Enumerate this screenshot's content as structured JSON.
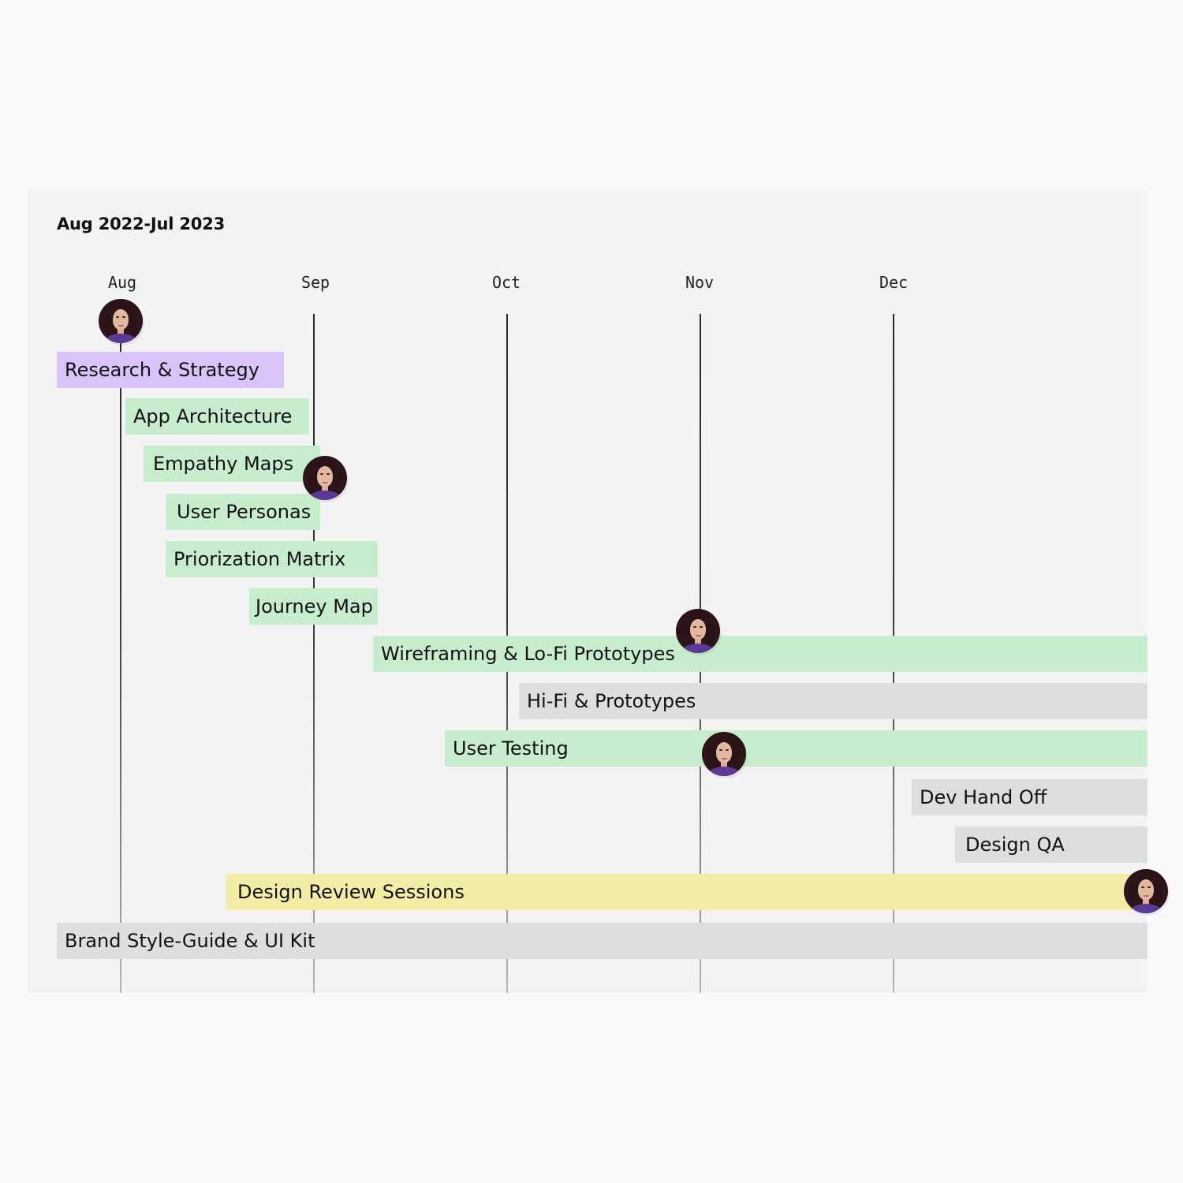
{
  "header": {
    "date_range": "Aug 2022-Jul 2023"
  },
  "months": [
    "Aug",
    "Sep",
    "Oct",
    "Nov",
    "Dec"
  ],
  "tasks": [
    {
      "label": "Research & Strategy",
      "color": "#d9c3f8"
    },
    {
      "label": "App Architecture",
      "color": "#c8ecce"
    },
    {
      "label": "Empathy Maps",
      "color": "#c8ecce"
    },
    {
      "label": "User Personas",
      "color": "#c8ecce"
    },
    {
      "label": "Priorization Matrix",
      "color": "#c8ecce"
    },
    {
      "label": "Journey Map",
      "color": "#c8ecce"
    },
    {
      "label": "Wireframing & Lo-Fi Prototypes",
      "color": "#c8ecce"
    },
    {
      "label": "Hi-Fi & Prototypes",
      "color": "#dedede"
    },
    {
      "label": "User Testing",
      "color": "#c8ecce"
    },
    {
      "label": "Dev Hand Off",
      "color": "#dedede"
    },
    {
      "label": "Design QA",
      "color": "#dedede"
    },
    {
      "label": "Design Review Sessions",
      "color": "#f3eda6"
    },
    {
      "label": "Brand Style-Guide & UI Kit",
      "color": "#dedede"
    }
  ],
  "avatars": [
    {
      "icon": "user-avatar-icon",
      "on_task": "Research & Strategy"
    },
    {
      "icon": "user-avatar-icon",
      "on_task": "Empathy Maps"
    },
    {
      "icon": "user-avatar-icon",
      "on_task": "Wireframing & Lo-Fi Prototypes"
    },
    {
      "icon": "user-avatar-icon",
      "on_task": "User Testing"
    },
    {
      "icon": "user-avatar-icon",
      "on_task": "Design Review Sessions"
    }
  ]
}
